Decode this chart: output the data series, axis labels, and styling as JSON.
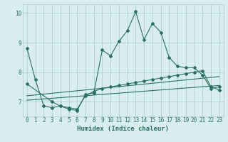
{
  "xlabel": "Humidex (Indice chaleur)",
  "background_color": "#d8eeee",
  "grid_color": "#b0d0d0",
  "line_color": "#2a7060",
  "xlim": [
    -0.5,
    23.5
  ],
  "ylim": [
    6.5,
    10.3
  ],
  "yticks": [
    7,
    8,
    9,
    10
  ],
  "xticks": [
    0,
    1,
    2,
    3,
    4,
    5,
    6,
    7,
    8,
    9,
    10,
    11,
    12,
    13,
    14,
    15,
    16,
    17,
    18,
    19,
    20,
    21,
    22,
    23
  ],
  "series1_x": [
    0,
    1,
    2,
    3,
    4,
    5,
    6,
    7,
    8,
    9,
    10,
    11,
    12,
    13,
    14,
    15,
    16,
    17,
    18,
    19,
    20,
    21,
    22,
    23
  ],
  "series1_y": [
    8.8,
    7.75,
    6.85,
    6.8,
    6.85,
    6.75,
    6.7,
    7.25,
    7.3,
    8.75,
    8.55,
    9.05,
    9.4,
    10.05,
    9.1,
    9.65,
    9.35,
    8.5,
    8.2,
    8.15,
    8.15,
    7.9,
    7.45,
    7.5
  ],
  "series2_x": [
    0,
    3,
    4,
    5,
    6,
    7,
    8,
    9,
    10,
    11,
    12,
    13,
    14,
    15,
    16,
    17,
    18,
    19,
    20,
    21,
    22,
    23
  ],
  "series2_y": [
    7.6,
    7.0,
    6.85,
    6.8,
    6.75,
    7.2,
    7.35,
    7.45,
    7.5,
    7.55,
    7.6,
    7.65,
    7.7,
    7.75,
    7.8,
    7.85,
    7.9,
    7.95,
    8.0,
    8.05,
    7.5,
    7.4
  ],
  "series3_x": [
    0,
    23
  ],
  "series3_y": [
    7.05,
    7.55
  ],
  "series4_x": [
    0,
    23
  ],
  "series4_y": [
    7.2,
    7.85
  ]
}
